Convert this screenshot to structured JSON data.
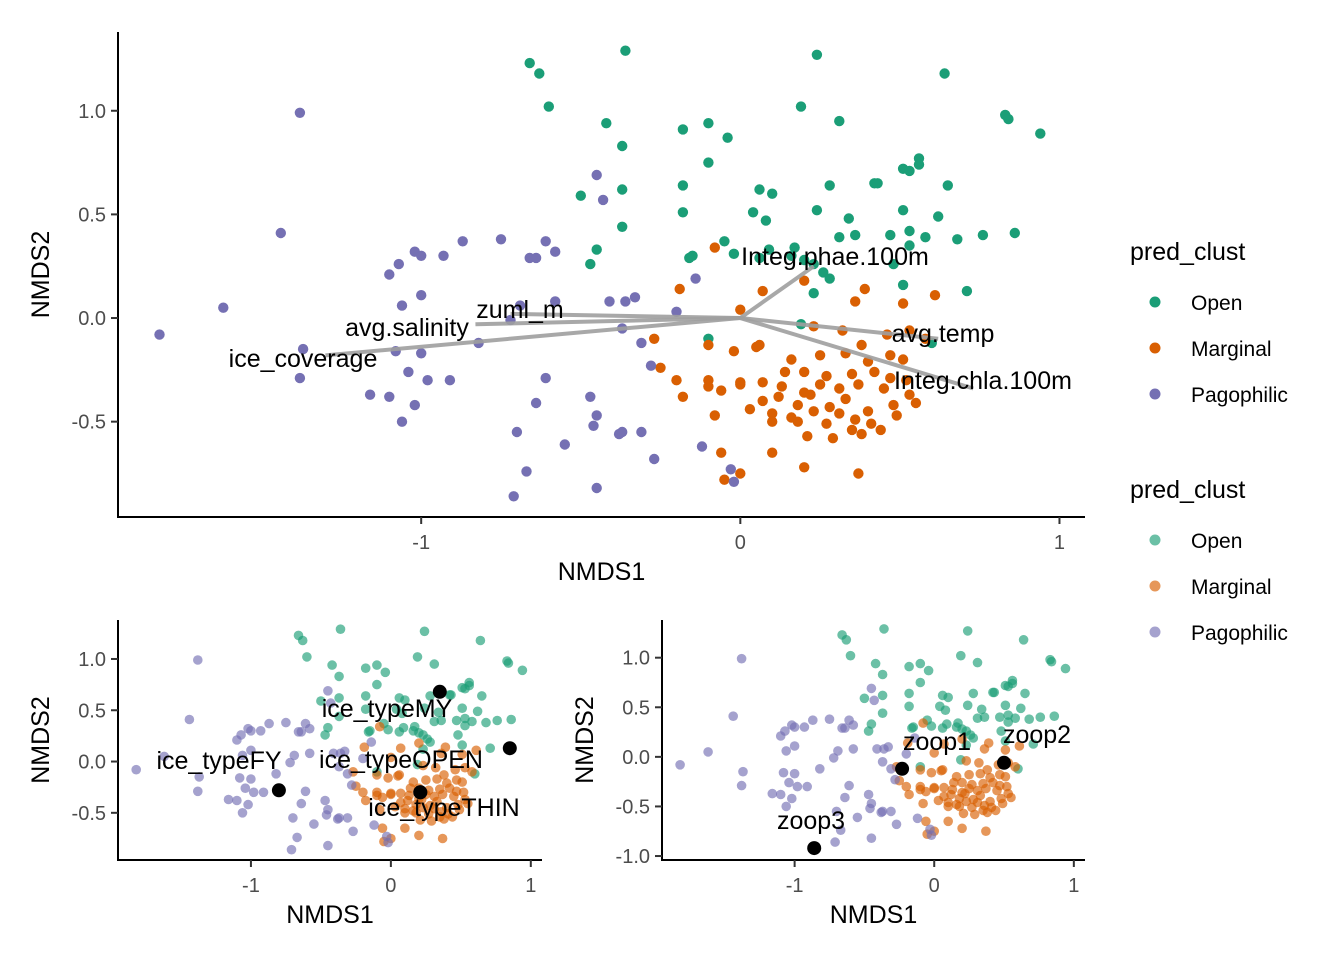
{
  "legends": [
    {
      "title": "pred_clust",
      "opacity": 1.0,
      "items": [
        {
          "label": "Open",
          "color": "#1B9E77"
        },
        {
          "label": "Marginal",
          "color": "#D95F02"
        },
        {
          "label": "Pagophilic",
          "color": "#7570B3"
        }
      ]
    },
    {
      "title": "pred_clust",
      "opacity": 0.65,
      "items": [
        {
          "label": "Open",
          "color": "#1B9E77"
        },
        {
          "label": "Marginal",
          "color": "#D95F02"
        },
        {
          "label": "Pagophilic",
          "color": "#7570B3"
        }
      ]
    }
  ],
  "chart_data": [
    {
      "type": "scatter",
      "title": "",
      "xlabel": "NMDS1",
      "ylabel": "NMDS2",
      "xlim": [
        -1.95,
        1.08
      ],
      "ylim": [
        -0.96,
        1.38
      ],
      "xticks": [
        -1,
        0,
        1
      ],
      "xtick_labels": [
        "-1",
        "0",
        "1"
      ],
      "yticks": [
        -0.5,
        0.0,
        0.5,
        1.0
      ],
      "ytick_labels": [
        "-0.5",
        "0.0",
        "0.5",
        "1.0"
      ],
      "grid": false,
      "legend": "right",
      "point_opacity": 1.0,
      "series": [
        {
          "name": "Open",
          "color": "#1B9E77",
          "points": [
            [
              -0.66,
              1.23
            ],
            [
              -0.63,
              1.18
            ],
            [
              -0.36,
              1.29
            ],
            [
              0.24,
              1.27
            ],
            [
              0.64,
              1.18
            ],
            [
              -0.6,
              1.02
            ],
            [
              -0.42,
              0.94
            ],
            [
              -0.18,
              0.91
            ],
            [
              -0.1,
              0.94
            ],
            [
              0.19,
              1.02
            ],
            [
              0.31,
              0.95
            ],
            [
              0.83,
              0.98
            ],
            [
              0.84,
              0.96
            ],
            [
              0.94,
              0.89
            ],
            [
              -0.04,
              0.87
            ],
            [
              -0.1,
              0.75
            ],
            [
              -0.37,
              0.83
            ],
            [
              -0.5,
              0.59
            ],
            [
              -0.37,
              0.62
            ],
            [
              -0.18,
              0.64
            ],
            [
              -0.18,
              0.51
            ],
            [
              0.06,
              0.62
            ],
            [
              0.1,
              0.6
            ],
            [
              0.28,
              0.64
            ],
            [
              0.42,
              0.65
            ],
            [
              0.43,
              0.65
            ],
            [
              0.51,
              0.72
            ],
            [
              0.53,
              0.71
            ],
            [
              0.56,
              0.77
            ],
            [
              0.56,
              0.74
            ],
            [
              0.65,
              0.64
            ],
            [
              0.04,
              0.51
            ],
            [
              0.08,
              0.47
            ],
            [
              0.24,
              0.52
            ],
            [
              0.34,
              0.48
            ],
            [
              0.51,
              0.52
            ],
            [
              0.62,
              0.49
            ],
            [
              0.36,
              0.4
            ],
            [
              0.31,
              0.39
            ],
            [
              0.47,
              0.4
            ],
            [
              0.53,
              0.42
            ],
            [
              0.58,
              0.39
            ],
            [
              0.68,
              0.38
            ],
            [
              0.76,
              0.4
            ],
            [
              0.86,
              0.41
            ],
            [
              -0.37,
              0.44
            ],
            [
              -0.45,
              0.33
            ],
            [
              -0.47,
              0.26
            ],
            [
              -0.15,
              0.3
            ],
            [
              -0.16,
              0.29
            ],
            [
              -0.05,
              0.37
            ],
            [
              -0.02,
              0.31
            ],
            [
              0.06,
              0.29
            ],
            [
              0.09,
              0.33
            ],
            [
              0.16,
              0.3
            ],
            [
              0.17,
              0.34
            ],
            [
              0.2,
              0.28
            ],
            [
              0.23,
              0.26
            ],
            [
              0.26,
              0.22
            ],
            [
              0.28,
              0.19
            ],
            [
              0.53,
              0.35
            ],
            [
              0.48,
              0.26
            ],
            [
              0.51,
              0.16
            ],
            [
              0.71,
              0.13
            ],
            [
              0.23,
              0.12
            ],
            [
              -0.1,
              -0.1
            ],
            [
              0.19,
              -0.03
            ],
            [
              0.6,
              -0.12
            ]
          ]
        },
        {
          "name": "Marginal",
          "color": "#D95F02",
          "points": [
            [
              -0.08,
              0.34
            ],
            [
              -0.19,
              0.14
            ],
            [
              0.0,
              0.04
            ],
            [
              0.07,
              0.13
            ],
            [
              0.2,
              0.18
            ],
            [
              0.36,
              0.08
            ],
            [
              0.39,
              0.14
            ],
            [
              0.51,
              0.07
            ],
            [
              0.61,
              0.11
            ],
            [
              -0.27,
              -0.1
            ],
            [
              -0.1,
              -0.13
            ],
            [
              0.06,
              -0.13
            ],
            [
              0.23,
              -0.04
            ],
            [
              0.32,
              -0.06
            ],
            [
              0.38,
              -0.13
            ],
            [
              0.46,
              -0.08
            ],
            [
              0.53,
              -0.06
            ],
            [
              0.58,
              -0.1
            ],
            [
              -0.25,
              -0.24
            ],
            [
              -0.02,
              -0.16
            ],
            [
              0.05,
              -0.14
            ],
            [
              0.16,
              -0.2
            ],
            [
              0.25,
              -0.18
            ],
            [
              0.33,
              -0.17
            ],
            [
              0.4,
              -0.21
            ],
            [
              0.47,
              -0.18
            ],
            [
              0.51,
              -0.2
            ],
            [
              -0.2,
              -0.3
            ],
            [
              -0.1,
              -0.3
            ],
            [
              0.0,
              -0.31
            ],
            [
              0.14,
              -0.26
            ],
            [
              0.2,
              -0.26
            ],
            [
              0.27,
              -0.28
            ],
            [
              0.35,
              -0.27
            ],
            [
              0.42,
              -0.26
            ],
            [
              0.47,
              -0.29
            ],
            [
              0.52,
              -0.3
            ],
            [
              -0.18,
              -0.38
            ],
            [
              -0.1,
              -0.33
            ],
            [
              -0.06,
              -0.35
            ],
            [
              0.0,
              -0.32
            ],
            [
              0.07,
              -0.31
            ],
            [
              0.13,
              -0.33
            ],
            [
              0.2,
              -0.36
            ],
            [
              0.25,
              -0.32
            ],
            [
              0.31,
              -0.34
            ],
            [
              0.37,
              -0.32
            ],
            [
              0.45,
              -0.34
            ],
            [
              0.53,
              -0.37
            ],
            [
              0.07,
              -0.4
            ],
            [
              0.12,
              -0.38
            ],
            [
              0.18,
              -0.42
            ],
            [
              0.22,
              -0.37
            ],
            [
              0.28,
              -0.43
            ],
            [
              0.33,
              -0.39
            ],
            [
              0.4,
              -0.45
            ],
            [
              0.48,
              -0.42
            ],
            [
              0.55,
              -0.41
            ],
            [
              0.1,
              -0.46
            ],
            [
              0.16,
              -0.48
            ],
            [
              0.23,
              -0.45
            ],
            [
              0.31,
              -0.46
            ],
            [
              0.36,
              -0.49
            ],
            [
              0.41,
              -0.51
            ],
            [
              0.49,
              -0.47
            ],
            [
              -0.08,
              -0.47
            ],
            [
              0.03,
              -0.44
            ],
            [
              0.1,
              -0.5
            ],
            [
              0.18,
              -0.5
            ],
            [
              0.27,
              -0.51
            ],
            [
              0.35,
              -0.54
            ],
            [
              0.44,
              -0.54
            ],
            [
              0.21,
              -0.57
            ],
            [
              0.29,
              -0.58
            ],
            [
              0.38,
              -0.56
            ],
            [
              -0.06,
              -0.65
            ],
            [
              0.1,
              -0.65
            ],
            [
              0.2,
              -0.72
            ],
            [
              0.0,
              -0.75
            ],
            [
              0.37,
              -0.75
            ],
            [
              -0.05,
              -0.78
            ]
          ]
        },
        {
          "name": "Pagophilic",
          "color": "#7570B3",
          "points": [
            [
              -1.38,
              0.99
            ],
            [
              -1.44,
              0.41
            ],
            [
              -1.62,
              0.05
            ],
            [
              -1.82,
              -0.08
            ],
            [
              -1.38,
              -0.29
            ],
            [
              -1.37,
              -0.15
            ],
            [
              -1.02,
              0.32
            ],
            [
              -1.07,
              0.26
            ],
            [
              -1.0,
              0.3
            ],
            [
              -0.93,
              0.3
            ],
            [
              -0.87,
              0.37
            ],
            [
              -0.75,
              0.38
            ],
            [
              -0.66,
              0.29
            ],
            [
              -0.64,
              0.29
            ],
            [
              -0.61,
              0.37
            ],
            [
              -0.58,
              0.32
            ],
            [
              -0.45,
              0.69
            ],
            [
              -0.43,
              0.57
            ],
            [
              -0.69,
              0.06
            ],
            [
              -0.72,
              -0.01
            ],
            [
              -0.58,
              0.08
            ],
            [
              -0.41,
              0.08
            ],
            [
              -0.36,
              0.08
            ],
            [
              -0.33,
              0.1
            ],
            [
              -0.2,
              0.03
            ],
            [
              -0.37,
              -0.05
            ],
            [
              -0.31,
              -0.12
            ],
            [
              -0.28,
              -0.23
            ],
            [
              -0.14,
              0.19
            ],
            [
              -0.82,
              -0.12
            ],
            [
              -1.1,
              0.21
            ],
            [
              -1.0,
              0.11
            ],
            [
              -1.06,
              0.06
            ],
            [
              -1.08,
              -0.16
            ],
            [
              -1.0,
              -0.17
            ],
            [
              -1.04,
              -0.26
            ],
            [
              -0.98,
              -0.3
            ],
            [
              -0.91,
              -0.3
            ],
            [
              -1.1,
              -0.38
            ],
            [
              -1.16,
              -0.37
            ],
            [
              -1.02,
              -0.42
            ],
            [
              -1.06,
              -0.5
            ],
            [
              -0.61,
              -0.29
            ],
            [
              -0.64,
              -0.41
            ],
            [
              -0.47,
              -0.38
            ],
            [
              -0.45,
              -0.47
            ],
            [
              -0.46,
              -0.52
            ],
            [
              -0.7,
              -0.55
            ],
            [
              -0.55,
              -0.61
            ],
            [
              -0.38,
              -0.56
            ],
            [
              -0.37,
              -0.55
            ],
            [
              -0.31,
              -0.55
            ],
            [
              -0.27,
              -0.68
            ],
            [
              -0.67,
              -0.74
            ],
            [
              -0.45,
              -0.82
            ],
            [
              -0.71,
              -0.86
            ],
            [
              -0.12,
              -0.62
            ],
            [
              -0.03,
              -0.73
            ],
            [
              -0.02,
              -0.79
            ]
          ]
        }
      ],
      "vectors": [
        {
          "label": "Integ.phae.100m",
          "end": [
            0.23,
            0.25
          ]
        },
        {
          "label": "zuml_m",
          "end": [
            -0.72,
            0.02
          ]
        },
        {
          "label": "avg.salinity",
          "end": [
            -0.83,
            -0.03
          ]
        },
        {
          "label": "ice_coverage",
          "end": [
            -1.3,
            -0.18
          ]
        },
        {
          "label": "avg.temp",
          "end": [
            0.62,
            -0.1
          ]
        },
        {
          "label": "Integ.chla.100m",
          "end": [
            0.73,
            -0.34
          ]
        }
      ]
    },
    {
      "type": "scatter",
      "title": "",
      "xlabel": "NMDS1",
      "ylabel": "NMDS2",
      "xlim": [
        -1.95,
        1.08
      ],
      "ylim": [
        -0.96,
        1.38
      ],
      "xticks": [
        -1,
        0,
        1
      ],
      "xtick_labels": [
        "-1",
        "0",
        "1"
      ],
      "yticks": [
        -0.5,
        0.0,
        0.5,
        1.0
      ],
      "ytick_labels": [
        "-0.5",
        "0.0",
        "0.5",
        "1.0"
      ],
      "grid": false,
      "point_opacity": 0.65,
      "series_from_panel": 0,
      "fit_points": [
        {
          "label": "ice_typeMY",
          "point": [
            0.35,
            0.68
          ]
        },
        {
          "label": "",
          "point": [
            0.85,
            0.13
          ]
        },
        {
          "label": "ice_typeFY",
          "point": [
            -0.8,
            -0.28
          ]
        },
        {
          "label": "ice_typeOPEN",
          "point": [
            0.21,
            -0.3
          ]
        },
        {
          "label": "ice_typeTHIN",
          "point": [
            0.21,
            -0.3
          ]
        }
      ]
    },
    {
      "type": "scatter",
      "title": "",
      "xlabel": "NMDS1",
      "ylabel": "NMDS2",
      "xlim": [
        -1.95,
        1.08
      ],
      "ylim": [
        -1.04,
        1.38
      ],
      "xticks": [
        -1,
        0,
        1
      ],
      "xtick_labels": [
        "-1",
        "0",
        "1"
      ],
      "yticks": [
        -1.0,
        -0.5,
        0.0,
        0.5,
        1.0
      ],
      "ytick_labels": [
        "-1.0",
        "-0.5",
        "0.0",
        "0.5",
        "1.0"
      ],
      "grid": false,
      "point_opacity": 0.65,
      "series_from_panel": 0,
      "fit_points": [
        {
          "label": "zoop1",
          "point": [
            -0.23,
            -0.12
          ]
        },
        {
          "label": "zoop2",
          "point": [
            0.5,
            -0.06
          ]
        },
        {
          "label": "zoop3",
          "point": [
            -0.86,
            -0.92
          ]
        }
      ]
    }
  ]
}
